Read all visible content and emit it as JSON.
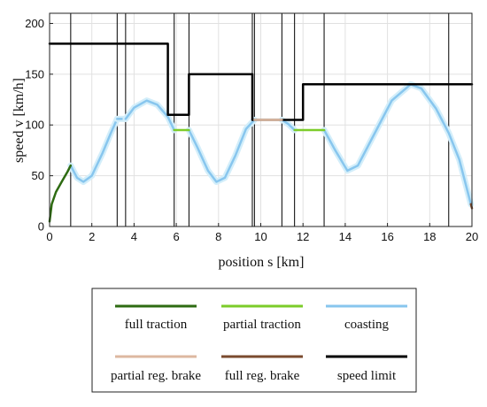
{
  "chart_data": {
    "type": "line",
    "title": "",
    "xlabel": "position s [km]",
    "ylabel": "speed v [km/h]",
    "xlim": [
      0,
      20
    ],
    "ylim": [
      0,
      210
    ],
    "x_ticks": [
      "0",
      "2",
      "4",
      "6",
      "8",
      "10",
      "12",
      "14",
      "16",
      "18",
      "20"
    ],
    "y_ticks": [
      "0",
      "50",
      "100",
      "150",
      "200"
    ],
    "grid": true,
    "vertical_lines_km": [
      1.0,
      3.2,
      3.6,
      5.9,
      6.6,
      9.6,
      9.7,
      11.0,
      11.6,
      13.0,
      18.9
    ],
    "legend": {
      "placement": "below",
      "entries": [
        {
          "label": "full traction",
          "color": "#2e6b12"
        },
        {
          "label": "partial traction",
          "color": "#7ccc2a"
        },
        {
          "label": "coasting",
          "color": "#88c6ee"
        },
        {
          "label": "partial reg. brake",
          "color": "#ddb8a0"
        },
        {
          "label": "full reg. brake",
          "color": "#7a4a2e"
        },
        {
          "label": "speed limit",
          "color": "#000000"
        }
      ]
    },
    "series": [
      {
        "name": "speed limit",
        "color": "#000000",
        "segments": [
          [
            [
              0,
              180
            ],
            [
              5.6,
              180
            ],
            [
              5.6,
              110
            ],
            [
              6.6,
              110
            ],
            [
              6.6,
              150
            ],
            [
              9.6,
              150
            ],
            [
              9.6,
              105
            ],
            [
              11.0,
              105
            ],
            [
              11.0,
              105
            ],
            [
              12.0,
              105
            ],
            [
              12.0,
              140
            ],
            [
              20,
              140
            ]
          ]
        ]
      },
      {
        "name": "full traction",
        "color": "#2e6b12",
        "segments": [
          [
            [
              0,
              5
            ],
            [
              0.1,
              22
            ],
            [
              0.3,
              34
            ],
            [
              0.6,
              45
            ],
            [
              0.85,
              54
            ],
            [
              1.0,
              60
            ]
          ]
        ]
      },
      {
        "name": "partial traction",
        "color": "#7ccc2a",
        "segments": [
          [
            [
              5.9,
              95
            ],
            [
              6.6,
              95
            ]
          ],
          [
            [
              11.6,
              95
            ],
            [
              13.0,
              95
            ]
          ]
        ]
      },
      {
        "name": "partial reg. brake",
        "color": "#ddb8a0",
        "segments": [
          [
            [
              9.7,
              105
            ],
            [
              11.0,
              105
            ]
          ]
        ]
      },
      {
        "name": "full reg. brake",
        "color": "#7a4a2e",
        "segments": [
          [
            [
              19.95,
              22
            ],
            [
              20,
              18
            ]
          ]
        ]
      },
      {
        "name": "coasting",
        "color": "#88c6ee",
        "segments": [
          [
            [
              1.0,
              60
            ],
            [
              1.3,
              48
            ],
            [
              1.6,
              44
            ],
            [
              2.0,
              50
            ],
            [
              2.5,
              72
            ],
            [
              2.9,
              92
            ],
            [
              3.2,
              106
            ]
          ],
          [
            [
              3.2,
              106
            ],
            [
              3.6,
              106
            ]
          ],
          [
            [
              3.6,
              106
            ],
            [
              4.0,
              117
            ],
            [
              4.6,
              124
            ],
            [
              5.1,
              120
            ],
            [
              5.6,
              108
            ],
            [
              5.9,
              95
            ]
          ],
          [
            [
              6.6,
              95
            ],
            [
              7.0,
              78
            ],
            [
              7.5,
              55
            ],
            [
              7.9,
              44
            ],
            [
              8.3,
              48
            ],
            [
              8.8,
              70
            ],
            [
              9.3,
              96
            ],
            [
              9.7,
              105
            ]
          ],
          [
            [
              11.0,
              105
            ],
            [
              11.3,
              101
            ],
            [
              11.6,
              95
            ]
          ],
          [
            [
              13.0,
              95
            ],
            [
              13.5,
              76
            ],
            [
              14.1,
              55
            ],
            [
              14.6,
              60
            ],
            [
              15.3,
              88
            ],
            [
              16.2,
              124
            ],
            [
              17.1,
              140
            ],
            [
              17.6,
              136
            ],
            [
              18.3,
              116
            ],
            [
              18.9,
              92
            ],
            [
              19.4,
              66
            ],
            [
              19.95,
              22
            ]
          ]
        ]
      }
    ]
  }
}
